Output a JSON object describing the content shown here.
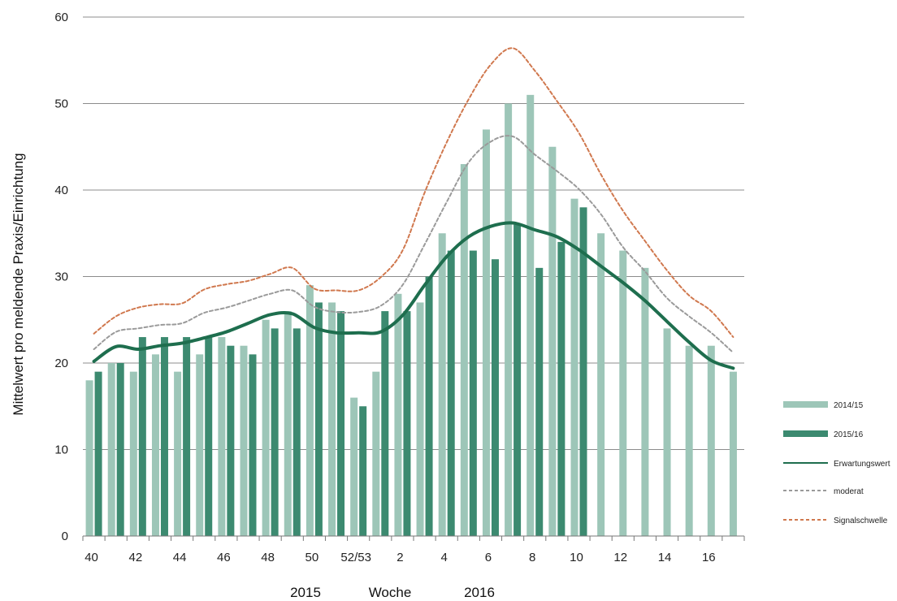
{
  "chart_data": {
    "type": "bar",
    "ylabel": "Mittelwert pro meldende Praxis/Einrichtung",
    "xlabel": "Woche",
    "year_labels": [
      "2015",
      "2016"
    ],
    "ylim": [
      0,
      60
    ],
    "yticks": [
      0,
      10,
      20,
      30,
      40,
      50,
      60
    ],
    "grid": true,
    "legend_position": "right",
    "categories": [
      "40",
      "41",
      "42",
      "43",
      "44",
      "45",
      "46",
      "47",
      "48",
      "49",
      "50",
      "51",
      "52/53",
      "1",
      "2",
      "3",
      "4",
      "5",
      "6",
      "7",
      "8",
      "9",
      "10",
      "11",
      "12",
      "13",
      "14",
      "15",
      "16",
      "17"
    ],
    "tick_labels": [
      "40",
      "",
      "42",
      "",
      "44",
      "",
      "46",
      "",
      "48",
      "",
      "50",
      "",
      "52/53",
      "",
      "2",
      "",
      "4",
      "",
      "6",
      "",
      "8",
      "",
      "10",
      "",
      "12",
      "",
      "14",
      "",
      "16",
      ""
    ],
    "series": [
      {
        "name": "2014/15",
        "kind": "bar",
        "color": "#9dc6b8",
        "values": [
          18,
          20,
          19,
          21,
          19,
          21,
          23,
          22,
          25,
          26,
          29,
          27,
          16,
          19,
          28,
          27,
          35,
          43,
          47,
          50,
          51,
          45,
          39,
          35,
          33,
          31,
          24,
          22,
          22,
          19
        ]
      },
      {
        "name": "2015/16",
        "kind": "bar",
        "color": "#3c8a70",
        "values": [
          19,
          20,
          23,
          23,
          23,
          23,
          22,
          21,
          24,
          24,
          27,
          26,
          15,
          26,
          26,
          30,
          33,
          33,
          32,
          36,
          31,
          34,
          38,
          null,
          null,
          null,
          null,
          null,
          null,
          null
        ]
      },
      {
        "name": "Erwartungswert",
        "kind": "line",
        "color": "#1e6e4e",
        "dash": "solid",
        "values": [
          20.2,
          21.9,
          21.6,
          22.0,
          22.3,
          22.9,
          23.6,
          24.6,
          25.6,
          25.7,
          24.1,
          23.5,
          23.5,
          23.6,
          25.5,
          29.0,
          32.3,
          34.6,
          35.8,
          36.2,
          35.4,
          34.6,
          33.1,
          31.2,
          29.3,
          27.2,
          24.8,
          22.4,
          20.3,
          19.4
        ]
      },
      {
        "name": "moderat",
        "kind": "line",
        "color": "#9a9a9a",
        "dash": "dashed",
        "values": [
          21.6,
          23.6,
          24.0,
          24.4,
          24.6,
          25.8,
          26.4,
          27.2,
          28.0,
          28.4,
          26.5,
          25.9,
          25.9,
          26.6,
          29.0,
          33.7,
          38.6,
          43.2,
          45.6,
          46.2,
          44.1,
          42.2,
          40.1,
          37.2,
          33.4,
          30.6,
          27.5,
          25.4,
          23.5,
          21.2
        ]
      },
      {
        "name": "Signalschwelle",
        "kind": "line",
        "color": "#d0784e",
        "dash": "dashed",
        "values": [
          23.4,
          25.4,
          26.4,
          26.8,
          26.9,
          28.5,
          29.1,
          29.5,
          30.3,
          31.0,
          28.6,
          28.4,
          28.4,
          29.9,
          33.0,
          39.7,
          45.5,
          50.5,
          54.5,
          56.4,
          53.8,
          50.3,
          46.6,
          41.8,
          37.6,
          34.1,
          30.7,
          27.8,
          26.0,
          23.0
        ]
      }
    ]
  }
}
